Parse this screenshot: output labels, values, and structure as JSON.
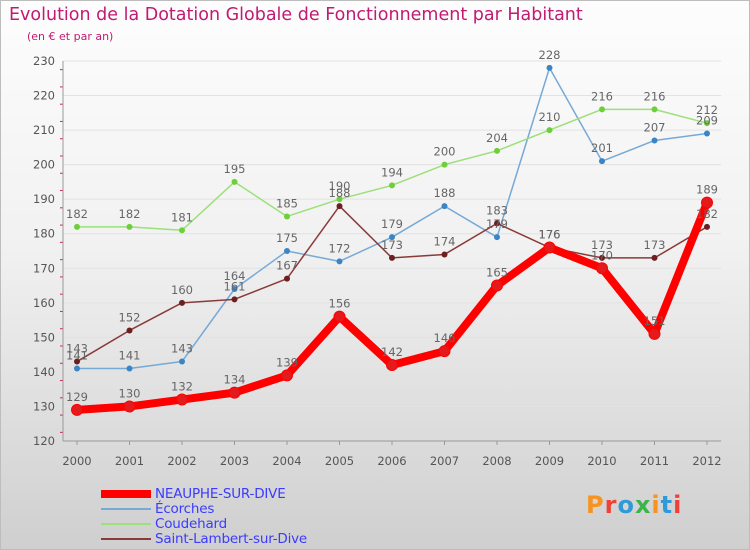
{
  "header": {
    "title": "Evolution de la Dotation Globale de Fonctionnement par Habitant",
    "subtitle": "(en € et par an)"
  },
  "logo": {
    "text": "Proxiti",
    "letter_colors": [
      "#f7931e",
      "#ef4136",
      "#2e9ad7",
      "#39b54a",
      "#f7931e",
      "#2e9ad7",
      "#ef4136"
    ]
  },
  "colors": {
    "title": "#c21a72",
    "axis": "#555555",
    "grid": "#e2e2e2",
    "value_label": "#666666",
    "tick_mark": "#d91c5c"
  },
  "chart_data": {
    "type": "line",
    "title": "Evolution de la Dotation Globale de Fonctionnement par Habitant",
    "subtitle": "(en € et par an)",
    "xlabel": "",
    "ylabel": "",
    "x": [
      "2000",
      "2001",
      "2002",
      "2003",
      "2004",
      "2005",
      "2006",
      "2007",
      "2008",
      "2009",
      "2010",
      "2011",
      "2012"
    ],
    "ylim": [
      120,
      230
    ],
    "yticks": [
      120,
      130,
      140,
      150,
      160,
      170,
      180,
      190,
      200,
      210,
      220,
      230
    ],
    "grid": true,
    "legend_position": "bottom-left",
    "series": [
      {
        "name": "NEAUPHE-SUR-DIVE",
        "color": "#ff0000",
        "marker_color": "#e41a1c",
        "width": 8,
        "values": [
          129,
          130,
          132,
          134,
          139,
          156,
          142,
          146,
          165,
          176,
          170,
          151,
          189
        ],
        "labels": [
          "129",
          "130",
          "132",
          "134",
          "139",
          "156",
          "142",
          "146",
          "165",
          "176",
          "170",
          "151",
          "189"
        ]
      },
      {
        "name": "Écorches",
        "color": "#76a9d6",
        "marker_color": "#3a85c6",
        "width": 1.5,
        "values": [
          141,
          141,
          143,
          164,
          175,
          172,
          179,
          188,
          179,
          228,
          201,
          207,
          209
        ],
        "labels": [
          "141",
          "141",
          "143",
          "164",
          "175",
          "172",
          "179",
          "188",
          "179",
          "228",
          "201",
          "207",
          "209"
        ]
      },
      {
        "name": "Coudehard",
        "color": "#9be07a",
        "marker_color": "#6fcf3a",
        "width": 1.5,
        "values": [
          182,
          182,
          181,
          195,
          185,
          190,
          194,
          200,
          204,
          210,
          216,
          216,
          212
        ],
        "labels": [
          "182",
          "182",
          "181",
          "195",
          "185",
          "190",
          "194",
          "200",
          "204",
          "210",
          "216",
          "216",
          "212"
        ]
      },
      {
        "name": "Saint-Lambert-sur-Dive",
        "color": "#8b3a3a",
        "marker_color": "#6b1f1f",
        "width": 1.5,
        "values": [
          143,
          152,
          160,
          161,
          167,
          188,
          173,
          174,
          183,
          176,
          173,
          173,
          182
        ],
        "labels": [
          "143",
          "152",
          "160",
          "161",
          "167",
          "188",
          "173",
          "174",
          "183",
          "176",
          "173",
          "173",
          "182"
        ]
      }
    ]
  }
}
